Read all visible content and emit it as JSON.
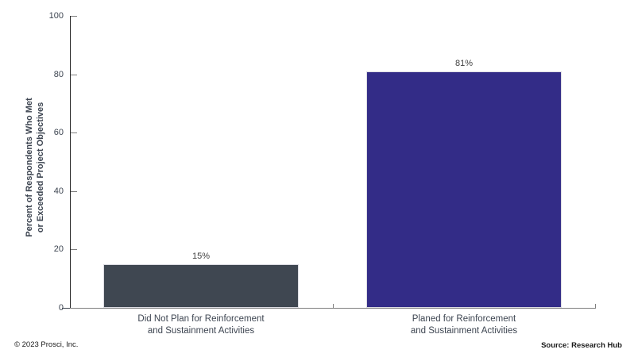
{
  "chart_data": {
    "type": "bar",
    "title": "",
    "categories": [
      "Did Not Plan for Reinforcement\nand Sustainment Activities",
      "Planed for Reinforcement\nand Sustainment Activities"
    ],
    "values": [
      15,
      81
    ],
    "value_labels": [
      "15%",
      "81%"
    ],
    "bar_colors": [
      "#3F4751",
      "#332C87"
    ],
    "xlabel": "",
    "ylabel": "Percent of Respondents Who Met\nor Exceeded Project Objectives",
    "ylim": [
      0,
      100
    ],
    "yticks": [
      0,
      20,
      40,
      60,
      80,
      100
    ],
    "grid": false,
    "legend": false,
    "layout": "x axis ticks at category boundaries, y ticks inside plot area"
  },
  "footer": {
    "copyright": "© 2023 Prosci, Inc.",
    "source": "Source: Research Hub"
  },
  "colors": {
    "background": "#FFFFFF",
    "axis_text": "#3D4551",
    "y_axis_line": "#262626",
    "x_axis_line": "#7F7F7F",
    "value_label": "#404040",
    "bar_gray": "#3F4751",
    "bar_purple": "#332C87"
  }
}
